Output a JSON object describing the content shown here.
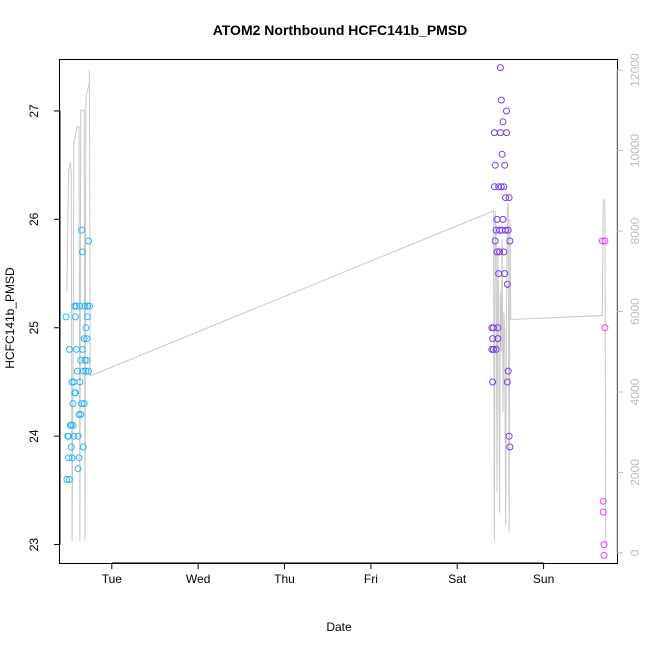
{
  "chart_data": {
    "type": "scatter",
    "title": "ATOM2 Northbound HCFC141b_PMSD",
    "xlabel": "Date",
    "ylabel": "HCFC141b_PMSD",
    "x_axis": {
      "type": "time",
      "range_days": [
        -0.6,
        5.85
      ],
      "ticks": [
        {
          "day": 0,
          "label": "Tue"
        },
        {
          "day": 1,
          "label": "Wed"
        },
        {
          "day": 2,
          "label": "Thu"
        },
        {
          "day": 3,
          "label": "Fri"
        },
        {
          "day": 4,
          "label": "Sat"
        },
        {
          "day": 5,
          "label": "Sun"
        }
      ]
    },
    "ylim": [
      22.83,
      27.47
    ],
    "yticks": [
      23,
      24,
      25,
      26,
      27
    ],
    "y2": {
      "description": "secondary axis (gray line series)",
      "lim": [
        -250,
        12250
      ],
      "ticks": [
        0,
        2000,
        4000,
        6000,
        8000,
        10000,
        12000
      ],
      "color": "#bdbdbd"
    },
    "grid": false,
    "series": [
      {
        "color": "#29b6f6",
        "marker": "open-circle",
        "points": [
          [
            -0.53,
            25.1
          ],
          [
            -0.52,
            23.6
          ],
          [
            -0.51,
            24.0
          ],
          [
            -0.5,
            24.0
          ],
          [
            -0.5,
            23.8
          ],
          [
            -0.49,
            23.6
          ],
          [
            -0.49,
            24.8
          ],
          [
            -0.48,
            24.1
          ],
          [
            -0.47,
            23.9
          ],
          [
            -0.47,
            24.1
          ],
          [
            -0.46,
            24.5
          ],
          [
            -0.46,
            23.8
          ],
          [
            -0.45,
            24.3
          ],
          [
            -0.45,
            24.1
          ],
          [
            -0.44,
            24.0
          ],
          [
            -0.44,
            24.5
          ],
          [
            -0.43,
            25.2
          ],
          [
            -0.43,
            24.4
          ],
          [
            -0.42,
            25.1
          ],
          [
            -0.42,
            24.4
          ],
          [
            -0.41,
            25.2
          ],
          [
            -0.41,
            24.8
          ],
          [
            -0.4,
            24.6
          ],
          [
            -0.39,
            23.7
          ],
          [
            -0.39,
            24.0
          ],
          [
            -0.38,
            23.8
          ],
          [
            -0.38,
            24.2
          ],
          [
            -0.37,
            24.5
          ],
          [
            -0.37,
            25.2
          ],
          [
            -0.36,
            24.7
          ],
          [
            -0.36,
            24.2
          ],
          [
            -0.35,
            24.3
          ],
          [
            -0.35,
            25.9
          ],
          [
            -0.34,
            24.8
          ],
          [
            -0.34,
            25.7
          ],
          [
            -0.33,
            23.9
          ],
          [
            -0.33,
            24.6
          ],
          [
            -0.32,
            24.9
          ],
          [
            -0.32,
            24.3
          ],
          [
            -0.31,
            25.2
          ],
          [
            -0.31,
            24.7
          ],
          [
            -0.3,
            24.6
          ],
          [
            -0.3,
            25.0
          ],
          [
            -0.29,
            24.9
          ],
          [
            -0.29,
            24.7
          ],
          [
            -0.28,
            25.2
          ],
          [
            -0.28,
            25.1
          ],
          [
            -0.27,
            24.6
          ],
          [
            -0.27,
            25.8
          ],
          [
            -0.26,
            25.2
          ]
        ]
      },
      {
        "color": "#7c3aed",
        "marker": "open-circle",
        "points": [
          [
            4.4,
            24.8
          ],
          [
            4.4,
            25.0
          ],
          [
            4.41,
            24.9
          ],
          [
            4.41,
            24.5
          ],
          [
            4.42,
            25.0
          ],
          [
            4.42,
            24.8
          ],
          [
            4.43,
            26.3
          ],
          [
            4.43,
            26.8
          ],
          [
            4.44,
            25.8
          ],
          [
            4.44,
            26.5
          ],
          [
            4.45,
            25.9
          ],
          [
            4.45,
            24.8
          ],
          [
            4.46,
            26.0
          ],
          [
            4.46,
            25.7
          ],
          [
            4.47,
            25.0
          ],
          [
            4.47,
            24.9
          ],
          [
            4.48,
            25.5
          ],
          [
            4.48,
            26.3
          ],
          [
            4.49,
            25.9
          ],
          [
            4.49,
            25.7
          ],
          [
            4.5,
            27.4
          ],
          [
            4.5,
            26.8
          ],
          [
            4.51,
            26.3
          ],
          [
            4.51,
            27.1
          ],
          [
            4.52,
            26.6
          ],
          [
            4.52,
            25.9
          ],
          [
            4.53,
            26.9
          ],
          [
            4.53,
            26.0
          ],
          [
            4.54,
            25.7
          ],
          [
            4.54,
            26.3
          ],
          [
            4.55,
            26.5
          ],
          [
            4.55,
            25.5
          ],
          [
            4.56,
            25.9
          ],
          [
            4.56,
            26.2
          ],
          [
            4.57,
            26.8
          ],
          [
            4.57,
            27.0
          ],
          [
            4.58,
            25.4
          ],
          [
            4.58,
            24.5
          ],
          [
            4.59,
            24.6
          ],
          [
            4.59,
            25.9
          ],
          [
            4.6,
            26.2
          ],
          [
            4.6,
            24.0
          ],
          [
            4.61,
            23.9
          ],
          [
            4.61,
            25.8
          ]
        ]
      },
      {
        "color": "#e040fb",
        "marker": "open-circle",
        "points": [
          [
            5.68,
            25.8
          ],
          [
            5.69,
            23.4
          ],
          [
            5.69,
            23.3
          ],
          [
            5.7,
            23.0
          ],
          [
            5.7,
            22.9
          ],
          [
            5.71,
            25.8
          ],
          [
            5.71,
            25.0
          ]
        ]
      },
      {
        "color": "#c8c8c8",
        "marker": "line",
        "axis": "y2",
        "points": [
          [
            -0.52,
            6500
          ],
          [
            -0.5,
            9500
          ],
          [
            -0.49,
            9600
          ],
          [
            -0.48,
            9700
          ],
          [
            -0.47,
            9500
          ],
          [
            -0.46,
            300
          ],
          [
            -0.45,
            4000
          ],
          [
            -0.44,
            10200
          ],
          [
            -0.43,
            10300
          ],
          [
            -0.42,
            10400
          ],
          [
            -0.41,
            10500
          ],
          [
            -0.4,
            10600
          ],
          [
            -0.39,
            10600
          ],
          [
            -0.38,
            10600
          ],
          [
            -0.37,
            300
          ],
          [
            -0.36,
            11000
          ],
          [
            -0.35,
            11000
          ],
          [
            -0.34,
            11000
          ],
          [
            -0.33,
            11000
          ],
          [
            -0.32,
            11000
          ],
          [
            -0.31,
            300
          ],
          [
            -0.3,
            11300
          ],
          [
            -0.29,
            11400
          ],
          [
            -0.28,
            11500
          ],
          [
            -0.27,
            11600
          ],
          [
            -0.26,
            11700
          ],
          [
            -0.26,
            12000
          ],
          [
            -0.25,
            4400
          ],
          [
            4.42,
            8500
          ],
          [
            4.43,
            300
          ],
          [
            4.44,
            8500
          ],
          [
            4.45,
            8000
          ],
          [
            4.46,
            1500
          ],
          [
            4.47,
            7500
          ],
          [
            4.48,
            6000
          ],
          [
            4.49,
            1000
          ],
          [
            4.5,
            6500
          ],
          [
            4.51,
            5000
          ],
          [
            4.52,
            7800
          ],
          [
            4.53,
            3500
          ],
          [
            4.54,
            6000
          ],
          [
            4.55,
            5500
          ],
          [
            4.56,
            700
          ],
          [
            4.57,
            6000
          ],
          [
            4.58,
            8500
          ],
          [
            4.59,
            8700
          ],
          [
            4.6,
            500
          ],
          [
            4.61,
            8300
          ],
          [
            4.62,
            5800
          ],
          [
            5.68,
            5900
          ],
          [
            5.69,
            8700
          ],
          [
            5.7,
            8800
          ],
          [
            5.71,
            8600
          ],
          [
            5.72,
            200
          ]
        ]
      }
    ]
  }
}
